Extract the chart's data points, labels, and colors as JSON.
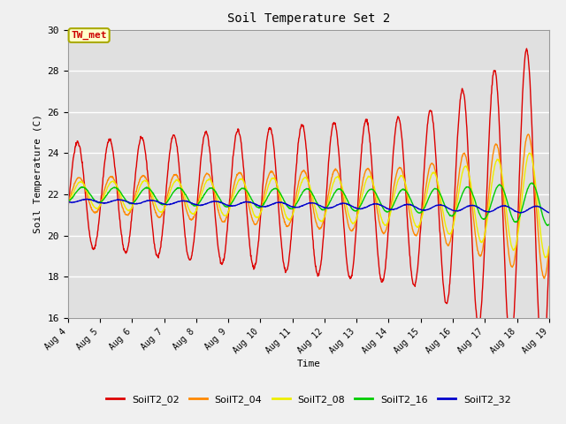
{
  "title": "Soil Temperature Set 2",
  "xlabel": "Time",
  "ylabel": "Soil Temperature (C)",
  "ylim": [
    16,
    30
  ],
  "xlim_days": [
    4,
    19
  ],
  "x_ticks": [
    4,
    5,
    6,
    7,
    8,
    9,
    10,
    11,
    12,
    13,
    14,
    15,
    16,
    17,
    18,
    19
  ],
  "x_tick_labels": [
    "Aug 4",
    "Aug 5",
    "Aug 6",
    "Aug 7",
    "Aug 8",
    "Aug 9",
    "Aug 10",
    "Aug 11",
    "Aug 12",
    "Aug 13",
    "Aug 14",
    "Aug 15",
    "Aug 16",
    "Aug 17",
    "Aug 18",
    "Aug 19"
  ],
  "annotation_text": "TW_met",
  "annotation_color": "#cc0000",
  "annotation_bg": "#ffffcc",
  "annotation_border": "#aaaa00",
  "line_colors": {
    "SoilT2_02": "#dd0000",
    "SoilT2_04": "#ff8800",
    "SoilT2_08": "#eeee00",
    "SoilT2_16": "#00cc00",
    "SoilT2_32": "#0000cc"
  },
  "legend_order": [
    "SoilT2_02",
    "SoilT2_04",
    "SoilT2_08",
    "SoilT2_16",
    "SoilT2_32"
  ],
  "fig_bg_color": "#f0f0f0",
  "plot_bg_color": "#e0e0e0",
  "grid_color": "#ffffff",
  "yticks": [
    16,
    18,
    20,
    22,
    24,
    26,
    28,
    30
  ]
}
